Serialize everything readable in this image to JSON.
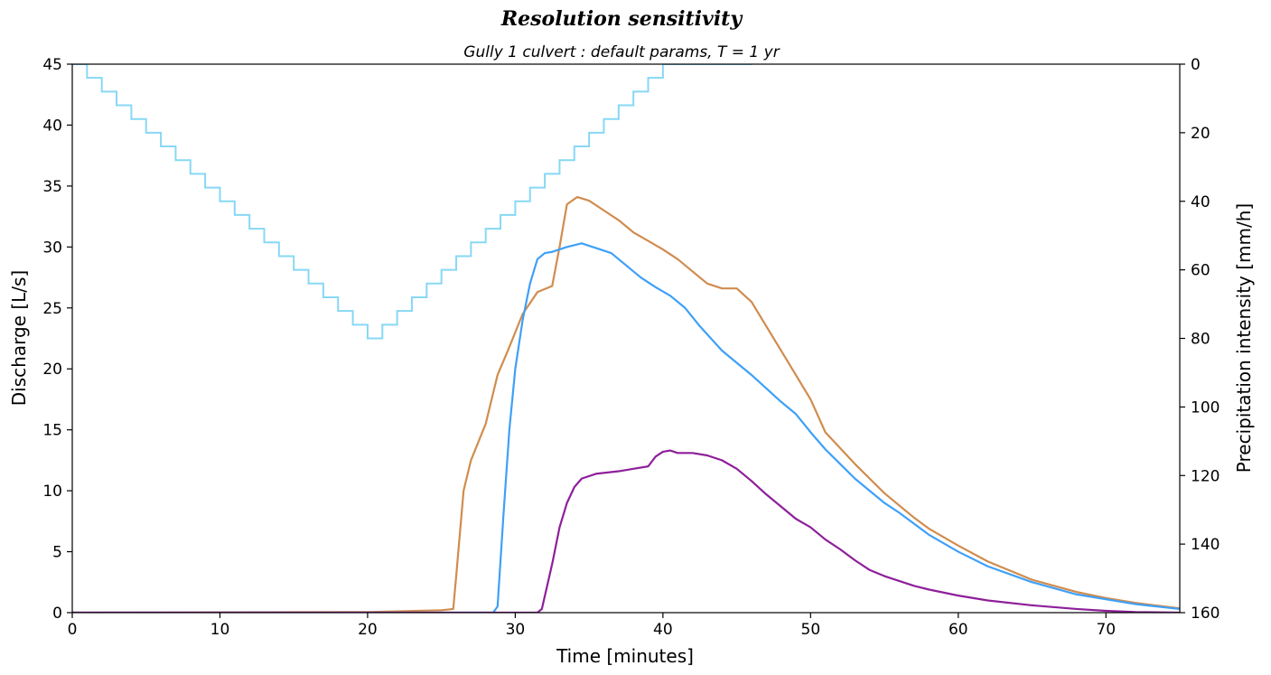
{
  "chart_data": {
    "type": "line",
    "title": "Resolution sensitivity",
    "subtitle": "Gully 1 culvert :  default params, T = 1 yr",
    "xlabel": "Time [minutes]",
    "ylabel": "Discharge [L/s]",
    "y2label": "Precipitation intensity [mm/h]",
    "xlim": [
      0,
      75
    ],
    "ylim": [
      0,
      45
    ],
    "y2lim": [
      0,
      160
    ],
    "y2_inverted": true,
    "x_ticks": [
      0,
      10,
      20,
      30,
      40,
      50,
      60,
      70
    ],
    "y_ticks": [
      0,
      5,
      10,
      15,
      20,
      25,
      30,
      35,
      40,
      45
    ],
    "y2_ticks": [
      0,
      20,
      40,
      60,
      80,
      100,
      120,
      140,
      160
    ],
    "grid": false,
    "legend": "none",
    "hyetograph": {
      "color": "#87d8f5",
      "axis": "right",
      "style": "step",
      "x": [
        0,
        1,
        2,
        3,
        4,
        5,
        6,
        7,
        8,
        9,
        10,
        11,
        12,
        13,
        14,
        15,
        16,
        17,
        18,
        19,
        20,
        21,
        22,
        23,
        24,
        25,
        26,
        27,
        28,
        29,
        30,
        31,
        32,
        33,
        34,
        35,
        36,
        37,
        38,
        39,
        40,
        41,
        42,
        43,
        44,
        45
      ],
      "values": [
        0,
        4,
        8,
        12,
        16,
        20,
        24,
        28,
        32,
        36,
        40,
        44,
        48,
        52,
        56,
        60,
        64,
        68,
        72,
        76,
        80,
        76,
        72,
        68,
        64,
        60,
        56,
        52,
        48,
        44,
        40,
        36,
        32,
        28,
        24,
        20,
        16,
        12,
        8,
        4,
        0,
        0,
        0,
        0,
        0,
        0
      ]
    },
    "series": [
      {
        "color": "#d08c4e",
        "x": [
          0,
          20,
          25,
          25.8,
          26.0,
          26.5,
          27.0,
          28.0,
          28.8,
          29.5,
          30.5,
          31.5,
          32.5,
          33.0,
          33.5,
          34.2,
          35,
          36,
          37,
          38,
          39,
          40,
          41,
          42,
          43,
          44,
          45,
          46,
          47,
          48,
          49,
          50,
          51,
          52,
          53,
          54,
          55,
          56,
          57,
          58,
          60,
          62,
          65,
          68,
          70,
          72,
          75
        ],
        "values": [
          0,
          0.05,
          0.2,
          0.3,
          3,
          10,
          12.5,
          15.5,
          19.5,
          21.5,
          24.5,
          26.3,
          26.8,
          30,
          33.5,
          34.1,
          33.8,
          33,
          32.2,
          31.2,
          30.5,
          29.8,
          29,
          28,
          27,
          26.6,
          26.6,
          25.5,
          23.5,
          21.5,
          19.5,
          17.5,
          14.8,
          13.5,
          12.2,
          11,
          9.8,
          8.8,
          7.8,
          6.9,
          5.5,
          4.2,
          2.7,
          1.7,
          1.2,
          0.8,
          0.35
        ]
      },
      {
        "color": "#3ea0f7",
        "x": [
          0,
          28.5,
          28.8,
          29.2,
          29.6,
          30.0,
          30.5,
          31.0,
          31.5,
          32.0,
          32.5,
          33.5,
          34.5,
          35.5,
          36.5,
          37.5,
          38.5,
          39.5,
          40.5,
          41.5,
          42.5,
          44,
          46,
          48,
          49,
          50,
          51,
          52,
          53,
          54,
          55,
          56,
          57,
          58,
          60,
          62,
          65,
          68,
          70,
          72,
          75
        ],
        "values": [
          0,
          0,
          0.5,
          8,
          15,
          20,
          24,
          27,
          29,
          29.5,
          29.6,
          30.0,
          30.3,
          29.9,
          29.5,
          28.5,
          27.5,
          26.7,
          26.0,
          25.0,
          23.5,
          21.5,
          19.5,
          17.3,
          16.3,
          14.8,
          13.4,
          12.2,
          11,
          10,
          9,
          8.2,
          7.3,
          6.4,
          5.0,
          3.8,
          2.5,
          1.5,
          1.1,
          0.7,
          0.3
        ]
      },
      {
        "color": "#8e1f9a",
        "x": [
          0,
          31.5,
          31.8,
          32.5,
          33.0,
          33.5,
          34.0,
          34.5,
          35.5,
          37,
          38,
          39,
          39.5,
          40,
          40.5,
          41,
          42,
          43,
          44,
          45,
          46,
          47,
          48,
          49,
          50,
          51,
          52,
          53,
          54,
          55,
          56,
          57,
          58,
          60,
          62,
          65,
          68,
          70,
          72,
          75
        ],
        "values": [
          0,
          0,
          0.3,
          4,
          7,
          9,
          10.3,
          11,
          11.4,
          11.6,
          11.8,
          12.0,
          12.8,
          13.2,
          13.3,
          13.1,
          13.1,
          12.9,
          12.5,
          11.8,
          10.8,
          9.7,
          8.7,
          7.7,
          7.0,
          6.0,
          5.2,
          4.3,
          3.5,
          3.0,
          2.6,
          2.2,
          1.9,
          1.4,
          1.0,
          0.6,
          0.3,
          0.15,
          0.05,
          0
        ]
      }
    ]
  }
}
